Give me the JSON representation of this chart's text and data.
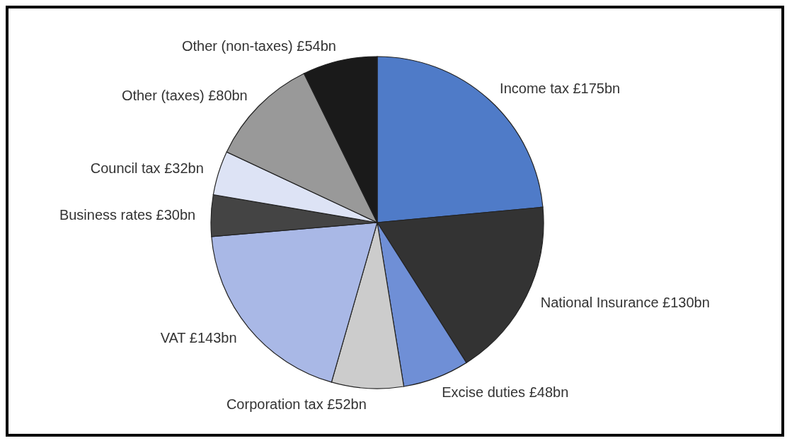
{
  "chart_data": {
    "type": "pie",
    "categories": [
      "Income tax",
      "National Insurance",
      "Excise duties",
      "Corporation tax",
      "VAT",
      "Business rates",
      "Council tax",
      "Other (taxes)",
      "Other (non-taxes)"
    ],
    "values": [
      175,
      130,
      48,
      52,
      143,
      30,
      32,
      80,
      54
    ],
    "value_labels": [
      "£175bn",
      "£130bn",
      "£48bn",
      "£52bn",
      "£143bn",
      "£30bn",
      "£32bn",
      "£80bn",
      "£54bn"
    ],
    "colors": [
      "#4f7bc8",
      "#333333",
      "#6f8fd6",
      "#cccccc",
      "#a9b8e6",
      "#444444",
      "#dde3f5",
      "#999999",
      "#1a1a1a"
    ]
  }
}
